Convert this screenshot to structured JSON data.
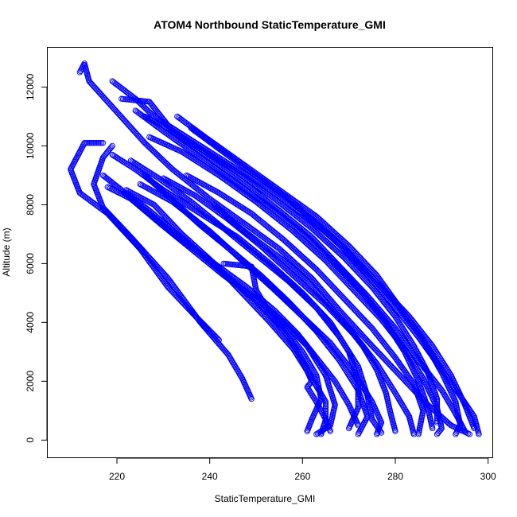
{
  "chart_data": {
    "type": "scatter",
    "title": "ATOM4 Northbound StaticTemperature_GMI",
    "xlabel": "StaticTemperature_GMI",
    "ylabel": "Altitude (m)",
    "xlim": [
      205,
      301
    ],
    "ylim": [
      -600,
      13350
    ],
    "xticks": [
      220,
      240,
      260,
      280,
      300
    ],
    "yticks": [
      0,
      2000,
      4000,
      6000,
      8000,
      10000,
      12000
    ],
    "xtick_labels": [
      "220",
      "240",
      "260",
      "280",
      "300"
    ],
    "ytick_labels": [
      "0",
      "2000",
      "4000",
      "6000",
      "8000",
      "10000",
      "12000"
    ],
    "marker": "open-circle",
    "grid": false,
    "legend": "none",
    "color": "#0000ff",
    "series": [
      {
        "points": [
          [
            242,
            3400
          ],
          [
            237,
            4200
          ],
          [
            231,
            5200
          ],
          [
            225,
            6500
          ],
          [
            218,
            7700
          ],
          [
            212,
            8400
          ],
          [
            210,
            9200
          ],
          [
            213,
            10100
          ],
          [
            217,
            10100
          ]
        ]
      },
      {
        "points": [
          [
            249,
            1400
          ],
          [
            247,
            2100
          ],
          [
            244,
            2900
          ],
          [
            238,
            4000
          ],
          [
            231,
            5500
          ],
          [
            223,
            6900
          ],
          [
            217,
            7900
          ],
          [
            215,
            8700
          ],
          [
            217,
            9600
          ],
          [
            219,
            10000
          ]
        ]
      },
      {
        "points": [
          [
            212,
            12500
          ],
          [
            213,
            12800
          ],
          [
            214,
            12200
          ],
          [
            218,
            11500
          ],
          [
            222,
            10800
          ],
          [
            226,
            10100
          ],
          [
            232,
            9200
          ],
          [
            240,
            8200
          ],
          [
            248,
            7300
          ],
          [
            255,
            6500
          ],
          [
            262,
            5500
          ],
          [
            268,
            4400
          ],
          [
            275,
            3200
          ],
          [
            281,
            2200
          ],
          [
            287,
            1200
          ],
          [
            292,
            500
          ],
          [
            296,
            200
          ]
        ]
      },
      {
        "points": [
          [
            219,
            12200
          ],
          [
            224,
            11600
          ],
          [
            228,
            11000
          ],
          [
            235,
            10300
          ],
          [
            243,
            9500
          ],
          [
            252,
            8600
          ],
          [
            260,
            7700
          ],
          [
            267,
            6800
          ],
          [
            273,
            5800
          ],
          [
            279,
            4700
          ],
          [
            285,
            3500
          ],
          [
            290,
            2400
          ],
          [
            294,
            1500
          ],
          [
            297,
            800
          ],
          [
            298,
            200
          ]
        ]
      },
      {
        "points": [
          [
            221,
            11600
          ],
          [
            227,
            11500
          ],
          [
            232,
            10500
          ],
          [
            239,
            9700
          ],
          [
            247,
            8800
          ],
          [
            255,
            7800
          ],
          [
            262,
            6900
          ],
          [
            268,
            5900
          ],
          [
            274,
            4900
          ],
          [
            280,
            3800
          ],
          [
            285,
            2700
          ],
          [
            290,
            1700
          ],
          [
            293,
            900
          ],
          [
            295,
            300
          ]
        ]
      },
      {
        "points": [
          [
            218,
            8600
          ],
          [
            223,
            8200
          ],
          [
            229,
            7400
          ],
          [
            236,
            6500
          ],
          [
            243,
            5600
          ],
          [
            250,
            4800
          ],
          [
            256,
            4000
          ],
          [
            261,
            3200
          ],
          [
            265,
            2200
          ],
          [
            267,
            1200
          ],
          [
            266,
            500
          ],
          [
            263,
            200
          ]
        ]
      },
      {
        "points": [
          [
            222,
            8500
          ],
          [
            228,
            8000
          ],
          [
            234,
            7000
          ],
          [
            241,
            6000
          ],
          [
            247,
            5000
          ],
          [
            253,
            4000
          ],
          [
            258,
            3100
          ],
          [
            262,
            2100
          ],
          [
            265,
            1300
          ],
          [
            265,
            700
          ],
          [
            264,
            200
          ]
        ]
      },
      {
        "points": [
          [
            226,
            9000
          ],
          [
            231,
            8300
          ],
          [
            238,
            7300
          ],
          [
            245,
            6400
          ],
          [
            251,
            5600
          ],
          [
            257,
            4700
          ],
          [
            263,
            3700
          ],
          [
            268,
            2700
          ],
          [
            272,
            1700
          ],
          [
            274,
            800
          ],
          [
            272,
            200
          ]
        ]
      },
      {
        "points": [
          [
            225,
            8700
          ],
          [
            232,
            8100
          ],
          [
            240,
            7100
          ],
          [
            247,
            6100
          ],
          [
            254,
            5100
          ],
          [
            260,
            4200
          ],
          [
            266,
            3300
          ],
          [
            271,
            2300
          ],
          [
            275,
            1300
          ],
          [
            277,
            600
          ],
          [
            276,
            200
          ]
        ]
      },
      {
        "points": [
          [
            230,
            8900
          ],
          [
            237,
            8300
          ],
          [
            244,
            7500
          ],
          [
            251,
            6600
          ],
          [
            258,
            5600
          ],
          [
            265,
            4600
          ],
          [
            271,
            3600
          ],
          [
            276,
            2600
          ],
          [
            280,
            1600
          ],
          [
            283,
            800
          ],
          [
            284,
            200
          ]
        ]
      },
      {
        "points": [
          [
            235,
            9000
          ],
          [
            242,
            8400
          ],
          [
            249,
            7700
          ],
          [
            256,
            6800
          ],
          [
            263,
            5800
          ],
          [
            269,
            4800
          ],
          [
            275,
            3800
          ],
          [
            280,
            2800
          ],
          [
            284,
            1900
          ],
          [
            286,
            1000
          ],
          [
            285,
            200
          ]
        ]
      },
      {
        "points": [
          [
            227,
            10300
          ],
          [
            234,
            9800
          ],
          [
            242,
            9000
          ],
          [
            250,
            8100
          ],
          [
            258,
            7100
          ],
          [
            265,
            6100
          ],
          [
            271,
            5100
          ],
          [
            277,
            4100
          ],
          [
            282,
            3100
          ],
          [
            286,
            2100
          ],
          [
            289,
            1100
          ],
          [
            290,
            400
          ],
          [
            289,
            200
          ]
        ]
      },
      {
        "points": [
          [
            233,
            11000
          ],
          [
            239,
            10300
          ],
          [
            247,
            9400
          ],
          [
            255,
            8500
          ],
          [
            263,
            7600
          ],
          [
            270,
            6600
          ],
          [
            276,
            5600
          ],
          [
            281,
            4500
          ],
          [
            286,
            3400
          ],
          [
            290,
            2300
          ],
          [
            293,
            1300
          ],
          [
            294,
            500
          ],
          [
            293,
            200
          ]
        ]
      },
      {
        "points": [
          [
            226,
            11000
          ],
          [
            231,
            10600
          ],
          [
            238,
            9900
          ],
          [
            246,
            9100
          ],
          [
            254,
            8200
          ],
          [
            262,
            7200
          ],
          [
            269,
            6200
          ],
          [
            275,
            5200
          ],
          [
            280,
            4200
          ],
          [
            284,
            3200
          ],
          [
            287,
            2300
          ],
          [
            289,
            1400
          ],
          [
            289,
            600
          ]
        ]
      },
      {
        "points": [
          [
            219,
            9700
          ],
          [
            224,
            9200
          ],
          [
            230,
            8500
          ],
          [
            238,
            7700
          ],
          [
            246,
            6900
          ],
          [
            253,
            6000
          ],
          [
            260,
            5000
          ],
          [
            266,
            4000
          ],
          [
            270,
            3000
          ],
          [
            272,
            2000
          ],
          [
            272,
            1100
          ],
          [
            270,
            400
          ]
        ]
      },
      {
        "points": [
          [
            236,
            10600
          ],
          [
            242,
            9900
          ],
          [
            249,
            9100
          ],
          [
            257,
            8200
          ],
          [
            264,
            7200
          ],
          [
            271,
            6200
          ],
          [
            277,
            5200
          ],
          [
            283,
            4200
          ],
          [
            288,
            3200
          ],
          [
            292,
            2200
          ],
          [
            295,
            1200
          ],
          [
            297,
            400
          ]
        ]
      },
      {
        "points": [
          [
            241,
            8000
          ],
          [
            245,
            7400
          ],
          [
            250,
            6800
          ],
          [
            256,
            6100
          ],
          [
            261,
            5400
          ],
          [
            265,
            4700
          ],
          [
            269,
            4000
          ],
          [
            273,
            3200
          ],
          [
            276,
            2400
          ],
          [
            278,
            1600
          ],
          [
            279,
            900
          ],
          [
            280,
            300
          ]
        ]
      },
      {
        "points": [
          [
            243,
            6000
          ],
          [
            249,
            5900
          ],
          [
            250,
            5100
          ],
          [
            253,
            4300
          ],
          [
            257,
            3500
          ],
          [
            260,
            2700
          ],
          [
            262,
            2000
          ],
          [
            261,
            1800
          ],
          [
            263,
            1300
          ],
          [
            265,
            700
          ],
          [
            266,
            300
          ]
        ]
      },
      {
        "points": [
          [
            222,
            8400
          ],
          [
            227,
            7800
          ],
          [
            233,
            7000
          ],
          [
            239,
            6200
          ],
          [
            245,
            5400
          ],
          [
            251,
            4600
          ],
          [
            256,
            3800
          ],
          [
            260,
            3000
          ],
          [
            263,
            2200
          ],
          [
            264,
            1400
          ],
          [
            262,
            700
          ],
          [
            261,
            300
          ]
        ]
      },
      {
        "points": [
          [
            223,
            9500
          ],
          [
            229,
            8900
          ],
          [
            236,
            8100
          ],
          [
            243,
            7200
          ],
          [
            250,
            6300
          ],
          [
            257,
            5400
          ],
          [
            263,
            4500
          ],
          [
            268,
            3500
          ],
          [
            272,
            2500
          ],
          [
            274,
            1500
          ],
          [
            275,
            700
          ],
          [
            277,
            250
          ]
        ]
      },
      {
        "points": [
          [
            217,
            9000
          ],
          [
            221,
            8500
          ],
          [
            227,
            7700
          ],
          [
            234,
            6800
          ],
          [
            241,
            6000
          ],
          [
            248,
            5200
          ],
          [
            254,
            4400
          ],
          [
            259,
            3600
          ],
          [
            263,
            2800
          ],
          [
            267,
            2000
          ],
          [
            270,
            1200
          ],
          [
            272,
            500
          ]
        ]
      },
      {
        "points": [
          [
            224,
            11200
          ],
          [
            230,
            10500
          ],
          [
            238,
            9600
          ],
          [
            246,
            8700
          ],
          [
            254,
            7800
          ],
          [
            261,
            6900
          ],
          [
            267,
            6000
          ],
          [
            273,
            5000
          ],
          [
            278,
            4000
          ],
          [
            282,
            3000
          ],
          [
            285,
            2000
          ],
          [
            287,
            1100
          ],
          [
            288,
            400
          ]
        ]
      }
    ]
  }
}
